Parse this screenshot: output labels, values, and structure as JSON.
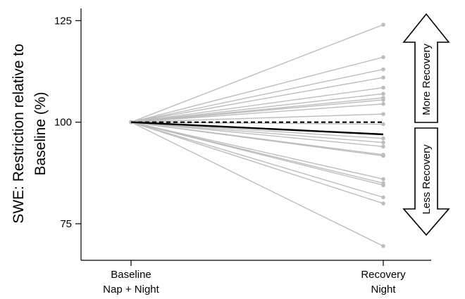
{
  "chart_data": {
    "type": "line",
    "ylabel_lines": [
      "SWE: Restriction relative to",
      "Baseline (%)"
    ],
    "categories": [
      {
        "lines": [
          "Baseline",
          "Nap + Night"
        ]
      },
      {
        "lines": [
          "Recovery",
          "Night"
        ]
      }
    ],
    "yticks": [
      75,
      100,
      125
    ],
    "ylim": [
      66,
      128
    ],
    "reference_value": 100,
    "baseline_value": 100,
    "individual_recovery_values": [
      124,
      116,
      113,
      111,
      108.5,
      107,
      106,
      105.5,
      104.5,
      102,
      99.5,
      96,
      95,
      94,
      92,
      91.7,
      86,
      85,
      84.5,
      81.5,
      80,
      69.5
    ],
    "mean_recovery_value": 97,
    "colors": {
      "individual": "#bdbdbd",
      "mean": "#000000"
    },
    "annotations": {
      "more_recovery": "More Recovery",
      "less_recovery": "Less Recovery"
    }
  }
}
